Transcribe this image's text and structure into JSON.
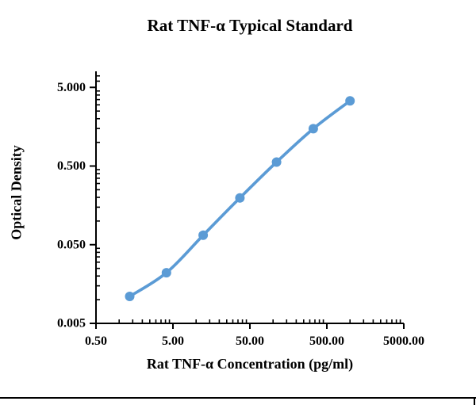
{
  "chart_data": {
    "type": "line",
    "title": "Rat TNF-α Typical Standard",
    "xlabel": "Rat TNF-α Concentration (pg/ml)",
    "ylabel": "Optical Density",
    "x_scale": "log",
    "y_scale": "log",
    "xlim": [
      0.5,
      5000
    ],
    "ylim": [
      0.005,
      8
    ],
    "grid": false,
    "legend": "none",
    "axis_color": "#000000",
    "x_ticks": {
      "values": [
        0.5,
        5,
        50,
        500,
        5000
      ],
      "labels": [
        "0.50",
        "5.00",
        "50.00",
        "500.00",
        "5000.00"
      ]
    },
    "y_ticks": {
      "values": [
        5,
        0.5,
        0.05,
        0.005
      ],
      "labels": [
        "5.000",
        "0.500",
        "0.050",
        "0.005"
      ]
    },
    "series": [
      {
        "name": "Typical Standard",
        "color": "#5b9bd5",
        "marker": "circle",
        "x": [
          1.37,
          4.12,
          12.35,
          37.04,
          111.11,
          333.33,
          1000
        ],
        "y": [
          0.011,
          0.022,
          0.066,
          0.197,
          0.562,
          1.49,
          3.37
        ]
      }
    ]
  }
}
